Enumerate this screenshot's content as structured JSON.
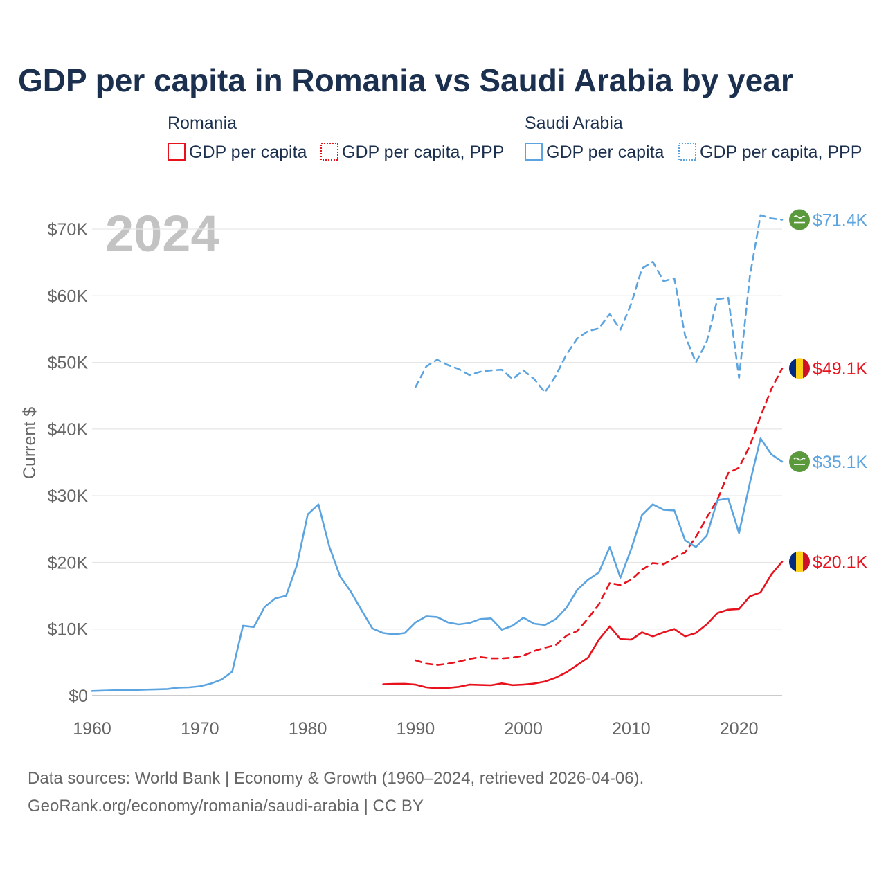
{
  "title": "GDP per capita in Romania vs Saudi Arabia by year",
  "year_label": "2024",
  "legend": {
    "groups": [
      {
        "country": "Romania",
        "items": [
          "GDP per capita",
          "GDP per capita, PPP"
        ],
        "color": "#e8121c"
      },
      {
        "country": "Saudi Arabia",
        "items": [
          "GDP per capita",
          "GDP per capita, PPP"
        ],
        "color": "#5ba4e0"
      }
    ]
  },
  "footer": {
    "line1": "Data sources: World Bank | Economy & Growth (1960–2024, retrieved 2026-04-06).",
    "line2": "GeoRank.org/economy/romania/saudi-arabia | CC BY"
  },
  "chart_data": {
    "type": "line",
    "title": "GDP per capita in Romania vs Saudi Arabia by year",
    "xlabel": "",
    "ylabel": "Current $",
    "xlim": [
      1960,
      2024
    ],
    "ylim": [
      0,
      70000
    ],
    "x_ticks": [
      1960,
      1970,
      1980,
      1990,
      2000,
      2010,
      2020
    ],
    "x_tick_labels": [
      "1960",
      "1970",
      "1980",
      "1990",
      "2000",
      "2010",
      "2020"
    ],
    "y_ticks": [
      0,
      10000,
      20000,
      30000,
      40000,
      50000,
      60000,
      70000
    ],
    "y_tick_labels": [
      "$0",
      "$10K",
      "$20K",
      "$30K",
      "$40K",
      "$50K",
      "$60K",
      "$70K"
    ],
    "grid": true,
    "series": [
      {
        "name": "Saudi Arabia GDP per capita, PPP",
        "country": "Saudi Arabia",
        "style": "dashed",
        "color": "#5ba4e0",
        "end_label": "$71.4K",
        "x": [
          1990,
          1991,
          1992,
          1993,
          1994,
          1995,
          1996,
          1997,
          1998,
          1999,
          2000,
          2001,
          2002,
          2003,
          2004,
          2005,
          2006,
          2007,
          2008,
          2009,
          2010,
          2011,
          2012,
          2013,
          2014,
          2015,
          2016,
          2017,
          2018,
          2019,
          2020,
          2021,
          2022,
          2023,
          2024
        ],
        "values": [
          46300,
          49400,
          50400,
          49600,
          49000,
          48100,
          48600,
          48800,
          48900,
          47500,
          48800,
          47500,
          45500,
          48000,
          51200,
          53600,
          54700,
          55100,
          57300,
          54900,
          58800,
          64100,
          65100,
          62200,
          62600,
          54000,
          50000,
          53100,
          59500,
          59700,
          47700,
          62900,
          72100,
          71600,
          71400
        ]
      },
      {
        "name": "Romania GDP per capita, PPP",
        "country": "Romania",
        "style": "dashed",
        "color": "#e8121c",
        "end_label": "$49.1K",
        "x": [
          1990,
          1991,
          1992,
          1993,
          1994,
          1995,
          1996,
          1997,
          1998,
          1999,
          2000,
          2001,
          2002,
          2003,
          2004,
          2005,
          2006,
          2007,
          2008,
          2009,
          2010,
          2011,
          2012,
          2013,
          2014,
          2015,
          2016,
          2017,
          2018,
          2019,
          2020,
          2021,
          2022,
          2023,
          2024
        ],
        "values": [
          5300,
          4800,
          4600,
          4800,
          5100,
          5500,
          5800,
          5600,
          5600,
          5700,
          6000,
          6700,
          7200,
          7600,
          9000,
          9700,
          11600,
          13700,
          16900,
          16600,
          17400,
          18900,
          19900,
          19700,
          20700,
          21500,
          23800,
          26700,
          29400,
          33400,
          34200,
          37500,
          41900,
          46000,
          49100
        ]
      },
      {
        "name": "Saudi Arabia GDP per capita",
        "country": "Saudi Arabia",
        "style": "solid",
        "color": "#5ba4e0",
        "end_label": "$35.1K",
        "x": [
          1960,
          1961,
          1962,
          1963,
          1964,
          1965,
          1966,
          1967,
          1968,
          1969,
          1970,
          1971,
          1972,
          1973,
          1974,
          1975,
          1976,
          1977,
          1978,
          1979,
          1980,
          1981,
          1982,
          1983,
          1984,
          1985,
          1986,
          1987,
          1988,
          1989,
          1990,
          1991,
          1992,
          1993,
          1994,
          1995,
          1996,
          1997,
          1998,
          1999,
          2000,
          2001,
          2002,
          2003,
          2004,
          2005,
          2006,
          2007,
          2008,
          2009,
          2010,
          2011,
          2012,
          2013,
          2014,
          2015,
          2016,
          2017,
          2018,
          2019,
          2020,
          2021,
          2022,
          2023,
          2024
        ],
        "values": [
          700,
          750,
          800,
          820,
          850,
          900,
          950,
          1000,
          1200,
          1250,
          1400,
          1800,
          2400,
          3600,
          10500,
          10300,
          13300,
          14600,
          15000,
          19600,
          27200,
          28700,
          22400,
          17900,
          15600,
          12800,
          10100,
          9400,
          9200,
          9400,
          11000,
          11900,
          11800,
          11000,
          10700,
          10900,
          11500,
          11600,
          9900,
          10500,
          11700,
          10800,
          10600,
          11500,
          13200,
          15900,
          17400,
          18500,
          22300,
          17700,
          22000,
          27100,
          28700,
          27900,
          27800,
          23300,
          22300,
          24000,
          29300,
          29600,
          24400,
          31900,
          38600,
          36200,
          35100
        ]
      },
      {
        "name": "Romania GDP per capita",
        "country": "Romania",
        "style": "solid",
        "color": "#e8121c",
        "end_label": "$20.1K",
        "x": [
          1987,
          1988,
          1989,
          1990,
          1991,
          1992,
          1993,
          1994,
          1995,
          1996,
          1997,
          1998,
          1999,
          2000,
          2001,
          2002,
          2003,
          2004,
          2005,
          2006,
          2007,
          2008,
          2009,
          2010,
          2011,
          2012,
          2013,
          2014,
          2015,
          2016,
          2017,
          2018,
          2019,
          2020,
          2021,
          2022,
          2023,
          2024
        ],
        "values": [
          1700,
          1750,
          1780,
          1650,
          1250,
          1100,
          1160,
          1320,
          1650,
          1600,
          1560,
          1840,
          1580,
          1650,
          1820,
          2120,
          2700,
          3500,
          4600,
          5700,
          8400,
          10400,
          8500,
          8400,
          9500,
          8900,
          9500,
          10000,
          8900,
          9400,
          10700,
          12400,
          12900,
          13000,
          14900,
          15500,
          18200,
          20100
        ]
      }
    ]
  }
}
